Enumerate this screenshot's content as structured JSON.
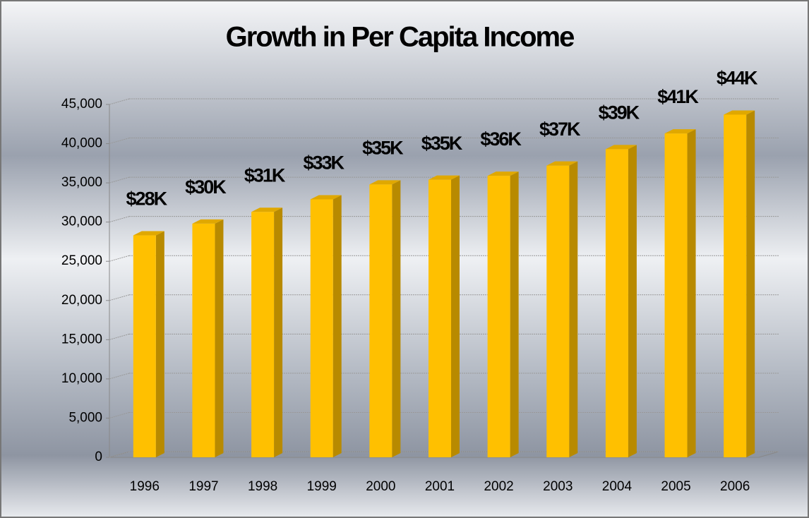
{
  "chart_data": {
    "type": "bar3d",
    "title": "Growth in Per Capita Income",
    "categories": [
      "1996",
      "1997",
      "1998",
      "1999",
      "2000",
      "2001",
      "2002",
      "2003",
      "2004",
      "2005",
      "2006"
    ],
    "values": [
      28300,
      29800,
      31300,
      32900,
      34800,
      35400,
      35900,
      37200,
      39300,
      41300,
      43700
    ],
    "value_labels": [
      "$28K",
      "$30K",
      "$31K",
      "$33K",
      "$35K",
      "$35K",
      "$36K",
      "$37K",
      "$39K",
      "$41K",
      "$44K"
    ],
    "color": "#ffc000",
    "ylim": [
      0,
      45000
    ],
    "yticks": [
      0,
      {
        "value": 5000,
        "label": "5,000"
      },
      {
        "value": 10000,
        "label": "10,000"
      },
      {
        "value": 15000,
        "label": "15,000"
      },
      {
        "value": 20000,
        "label": "20,000"
      },
      {
        "value": 25000,
        "label": "25,000"
      },
      {
        "value": 30000,
        "label": "30,000"
      },
      {
        "value": 35000,
        "label": "35,000"
      },
      {
        "value": 40000,
        "label": "40,000"
      },
      {
        "value": 45000,
        "label": "45,000"
      }
    ],
    "grid": true
  }
}
